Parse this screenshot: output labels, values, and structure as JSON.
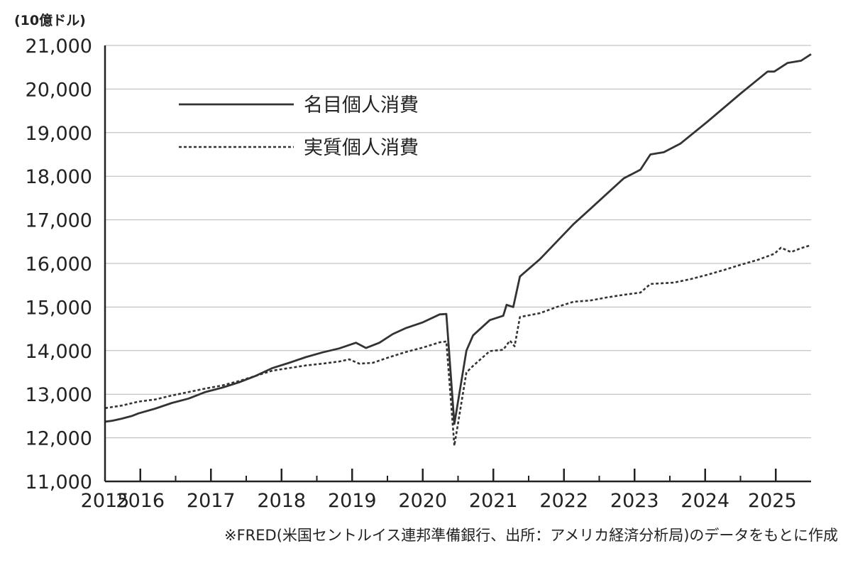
{
  "chart_data": {
    "type": "line",
    "unit_label": "(10億ドル)",
    "source_note": "※FRED(米国セントルイス連邦準備銀行、出所：アメリカ経済分析局)のデータをもとに作成",
    "ylim": [
      11000,
      21000
    ],
    "yticks": [
      11000,
      12000,
      13000,
      14000,
      15000,
      16000,
      17000,
      18000,
      19000,
      20000,
      21000
    ],
    "ytick_labels": [
      "11,000",
      "12,000",
      "13,000",
      "14,000",
      "15,000",
      "16,000",
      "17,000",
      "18,000",
      "19,000",
      "20,000",
      "21,000"
    ],
    "xlim": [
      2015.0,
      2025.0
    ],
    "xtick_labels": [
      {
        "x": 2015.0,
        "label": "2015"
      },
      {
        "x": 2015.5,
        "label": "2016"
      },
      {
        "x": 2016.5,
        "label": "2017"
      },
      {
        "x": 2017.5,
        "label": "2018"
      },
      {
        "x": 2018.5,
        "label": "2019"
      },
      {
        "x": 2019.5,
        "label": "2020"
      },
      {
        "x": 2020.5,
        "label": "2021"
      },
      {
        "x": 2021.5,
        "label": "2022"
      },
      {
        "x": 2022.5,
        "label": "2023"
      },
      {
        "x": 2023.5,
        "label": "2024"
      },
      {
        "x": 2024.45,
        "label": "2025"
      }
    ],
    "xticks_major": [
      2015.5,
      2016.5,
      2017.5,
      2018.5,
      2019.5,
      2020.5,
      2021.5,
      2022.5,
      2023.5,
      2024.5
    ],
    "grid": true,
    "legend_position": "top-left",
    "series": [
      {
        "name": "名目個人消費",
        "style": "solid",
        "color": "#333333",
        "points": [
          [
            2015.0,
            12370
          ],
          [
            2015.1,
            12390
          ],
          [
            2015.25,
            12440
          ],
          [
            2015.4,
            12500
          ],
          [
            2015.5,
            12560
          ],
          [
            2015.75,
            12670
          ],
          [
            2016.0,
            12800
          ],
          [
            2016.25,
            12900
          ],
          [
            2016.5,
            13050
          ],
          [
            2016.75,
            13150
          ],
          [
            2017.0,
            13270
          ],
          [
            2017.25,
            13420
          ],
          [
            2017.5,
            13600
          ],
          [
            2017.75,
            13720
          ],
          [
            2018.0,
            13850
          ],
          [
            2018.25,
            13960
          ],
          [
            2018.5,
            14050
          ],
          [
            2018.75,
            14180
          ],
          [
            2018.9,
            14060
          ],
          [
            2019.1,
            14180
          ],
          [
            2019.3,
            14380
          ],
          [
            2019.5,
            14520
          ],
          [
            2019.75,
            14650
          ],
          [
            2020.0,
            14830
          ],
          [
            2020.1,
            14840
          ],
          [
            2020.22,
            12320
          ],
          [
            2020.4,
            14000
          ],
          [
            2020.5,
            14350
          ],
          [
            2020.75,
            14700
          ],
          [
            2020.95,
            14800
          ],
          [
            2021.0,
            15050
          ],
          [
            2021.1,
            15000
          ],
          [
            2021.2,
            15700
          ],
          [
            2021.5,
            16100
          ],
          [
            2021.75,
            16500
          ],
          [
            2022.0,
            16900
          ],
          [
            2022.25,
            17250
          ],
          [
            2022.5,
            17600
          ],
          [
            2022.75,
            17950
          ],
          [
            2023.0,
            18150
          ],
          [
            2023.15,
            18500
          ],
          [
            2023.35,
            18550
          ],
          [
            2023.6,
            18750
          ],
          [
            2024.0,
            19250
          ],
          [
            2024.5,
            19900
          ],
          [
            2024.9,
            20400
          ],
          [
            2025.0,
            20400
          ],
          [
            2025.2,
            20600
          ],
          [
            2025.4,
            20650
          ],
          [
            2025.55,
            20800
          ]
        ]
      },
      {
        "name": "実質個人消費",
        "style": "dotted",
        "color": "#333333",
        "points": [
          [
            2015.0,
            12680
          ],
          [
            2015.25,
            12740
          ],
          [
            2015.5,
            12830
          ],
          [
            2015.75,
            12880
          ],
          [
            2016.0,
            12970
          ],
          [
            2016.25,
            13050
          ],
          [
            2016.5,
            13130
          ],
          [
            2016.75,
            13200
          ],
          [
            2017.0,
            13300
          ],
          [
            2017.25,
            13420
          ],
          [
            2017.5,
            13540
          ],
          [
            2017.75,
            13600
          ],
          [
            2018.0,
            13660
          ],
          [
            2018.25,
            13700
          ],
          [
            2018.5,
            13750
          ],
          [
            2018.65,
            13800
          ],
          [
            2018.8,
            13700
          ],
          [
            2019.0,
            13720
          ],
          [
            2019.25,
            13850
          ],
          [
            2019.5,
            13970
          ],
          [
            2019.75,
            14070
          ],
          [
            2020.0,
            14190
          ],
          [
            2020.1,
            14210
          ],
          [
            2020.22,
            11820
          ],
          [
            2020.4,
            13500
          ],
          [
            2020.5,
            13650
          ],
          [
            2020.75,
            13990
          ],
          [
            2020.95,
            14020
          ],
          [
            2021.05,
            14230
          ],
          [
            2021.12,
            14100
          ],
          [
            2021.2,
            14770
          ],
          [
            2021.5,
            14860
          ],
          [
            2021.75,
            15000
          ],
          [
            2022.0,
            15120
          ],
          [
            2022.25,
            15150
          ],
          [
            2022.5,
            15220
          ],
          [
            2022.75,
            15280
          ],
          [
            2023.0,
            15330
          ],
          [
            2023.15,
            15530
          ],
          [
            2023.5,
            15560
          ],
          [
            2023.75,
            15640
          ],
          [
            2024.0,
            15740
          ],
          [
            2024.25,
            15850
          ],
          [
            2024.5,
            15970
          ],
          [
            2024.75,
            16080
          ],
          [
            2025.0,
            16220
          ],
          [
            2025.1,
            16360
          ],
          [
            2025.25,
            16260
          ],
          [
            2025.4,
            16350
          ],
          [
            2025.55,
            16420
          ]
        ]
      }
    ]
  }
}
